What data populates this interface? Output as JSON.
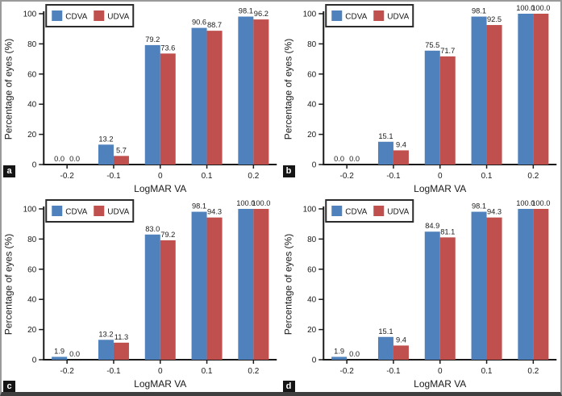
{
  "figure": {
    "border_color": "#9a9a9a",
    "bottom_bar_color": "#3f3f3f",
    "background": "#ffffff"
  },
  "colors": {
    "cdva": "#4f81bd",
    "udva": "#c0504d",
    "axis": "#1a1a1a",
    "legend_border": "#2b2b2b",
    "panel_letter_bg": "#151515",
    "panel_letter_fg": "#ffffff"
  },
  "legend": {
    "items": [
      {
        "label": "CDVA",
        "color": "#4f81bd"
      },
      {
        "label": "UDVA",
        "color": "#c0504d"
      }
    ],
    "position": "top-left"
  },
  "chart_data": [
    {
      "panel": "a",
      "type": "bar",
      "categories": [
        "-0.2",
        "-0.1",
        "0",
        "0.1",
        "0.2"
      ],
      "series": [
        {
          "name": "CDVA",
          "values": [
            0.0,
            13.2,
            79.2,
            90.6,
            98.1
          ]
        },
        {
          "name": "UDVA",
          "values": [
            0.0,
            5.7,
            73.6,
            88.7,
            96.2
          ]
        }
      ],
      "title": "",
      "xlabel": "LogMAR VA",
      "ylabel": "Percentage of eyes (%)",
      "ylim": [
        0,
        100
      ],
      "yticks": [
        0,
        20,
        40,
        60,
        80,
        100
      ],
      "grid": false,
      "legend_position": "top-left",
      "value_labels": true
    },
    {
      "panel": "b",
      "type": "bar",
      "categories": [
        "-0.2",
        "-0.1",
        "0",
        "0.1",
        "0.2"
      ],
      "series": [
        {
          "name": "CDVA",
          "values": [
            0.0,
            15.1,
            75.5,
            98.1,
            100.0
          ]
        },
        {
          "name": "UDVA",
          "values": [
            0.0,
            9.4,
            71.7,
            92.5,
            100.0
          ]
        }
      ],
      "title": "",
      "xlabel": "LogMAR VA",
      "ylabel": "Percentage of eyes (%)",
      "ylim": [
        0,
        100
      ],
      "yticks": [
        0,
        20,
        40,
        60,
        80,
        100
      ],
      "grid": false,
      "legend_position": "top-left",
      "value_labels": true
    },
    {
      "panel": "c",
      "type": "bar",
      "categories": [
        "-0.2",
        "-0.1",
        "0",
        "0.1",
        "0.2"
      ],
      "series": [
        {
          "name": "CDVA",
          "values": [
            1.9,
            13.2,
            83.0,
            98.1,
            100.0
          ]
        },
        {
          "name": "UDVA",
          "values": [
            0.0,
            11.3,
            79.2,
            94.3,
            100.0
          ]
        }
      ],
      "title": "",
      "xlabel": "LogMAR VA",
      "ylabel": "Percentage of eyes (%)",
      "ylim": [
        0,
        100
      ],
      "yticks": [
        0,
        20,
        40,
        60,
        80,
        100
      ],
      "grid": false,
      "legend_position": "top-left",
      "value_labels": true
    },
    {
      "panel": "d",
      "type": "bar",
      "categories": [
        "-0.2",
        "-0.1",
        "0",
        "0.1",
        "0.2"
      ],
      "series": [
        {
          "name": "CDVA",
          "values": [
            1.9,
            15.1,
            84.9,
            98.1,
            100.0
          ]
        },
        {
          "name": "UDVA",
          "values": [
            0.0,
            9.4,
            81.1,
            94.3,
            100.0
          ]
        }
      ],
      "title": "",
      "xlabel": "LogMAR VA",
      "ylabel": "Percentage of eyes (%)",
      "ylim": [
        0,
        100
      ],
      "yticks": [
        0,
        20,
        40,
        60,
        80,
        100
      ],
      "grid": false,
      "legend_position": "top-left",
      "value_labels": true
    }
  ]
}
